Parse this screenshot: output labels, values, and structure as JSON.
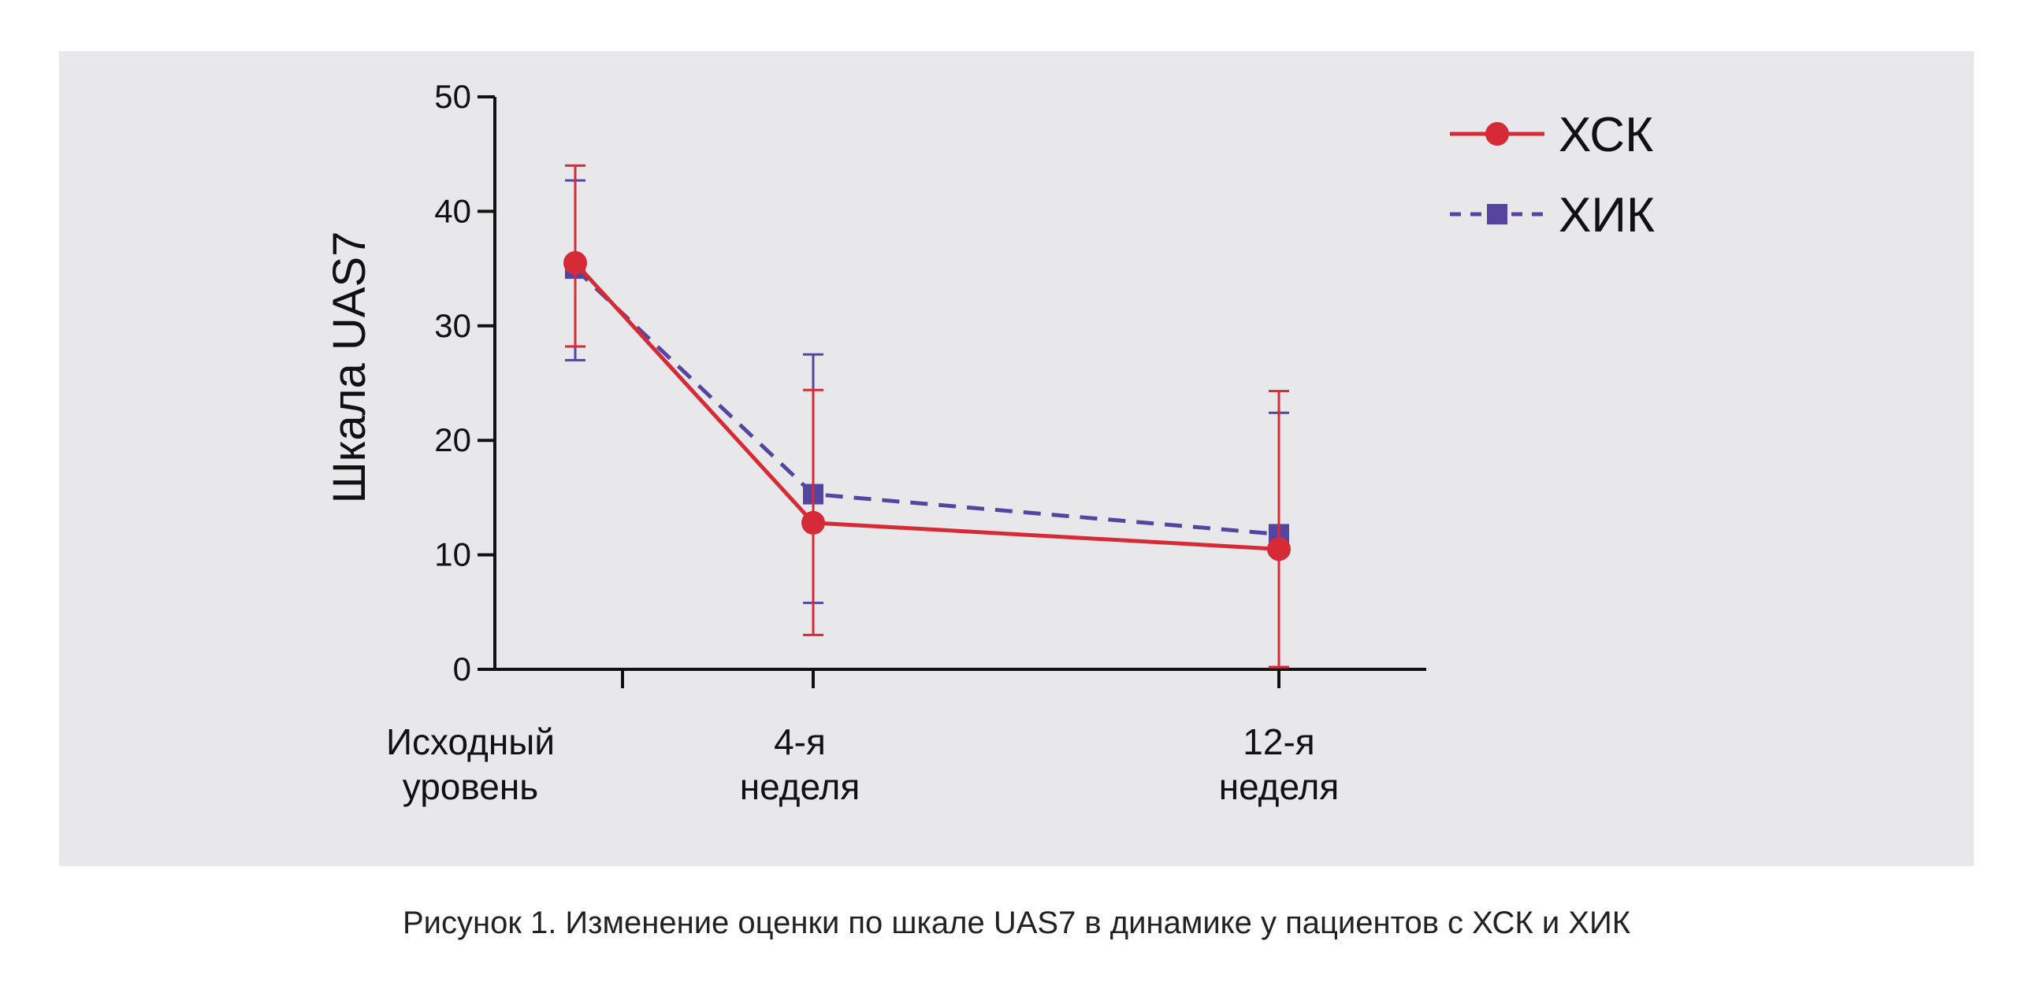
{
  "chart_data": {
    "type": "line",
    "ylabel": "Шкала UAS7",
    "xlabel": "",
    "ylim": [
      0,
      50
    ],
    "y_ticks": [
      0,
      10,
      20,
      30,
      40,
      50
    ],
    "categories": [
      {
        "line1": "Исходный",
        "line2": "уровень"
      },
      {
        "line1": "4-я",
        "line2": "неделя"
      },
      {
        "line1": "12-я",
        "line2": "неделя"
      }
    ],
    "x": [
      0,
      4,
      12
    ],
    "series": [
      {
        "name": "ХСК",
        "values": [
          35.5,
          12.8,
          10.5
        ],
        "error_low": [
          28.2,
          3.0,
          0.2
        ],
        "error_high": [
          44.0,
          24.4,
          24.3
        ],
        "color": "#d62b36",
        "marker": "circle",
        "line_style": "solid"
      },
      {
        "name": "ХИК",
        "values": [
          35.0,
          15.3,
          11.8
        ],
        "error_low": [
          27.0,
          5.8,
          0.2
        ],
        "error_high": [
          42.7,
          27.5,
          22.4
        ],
        "color": "#5545a0",
        "marker": "square",
        "line_style": "dashed"
      }
    ],
    "legend_position": "top-right",
    "grid": false
  },
  "caption": "Рисунок 1. Изменение оценки по шкале UAS7 в динамике у пациентов с ХСК и ХИК"
}
